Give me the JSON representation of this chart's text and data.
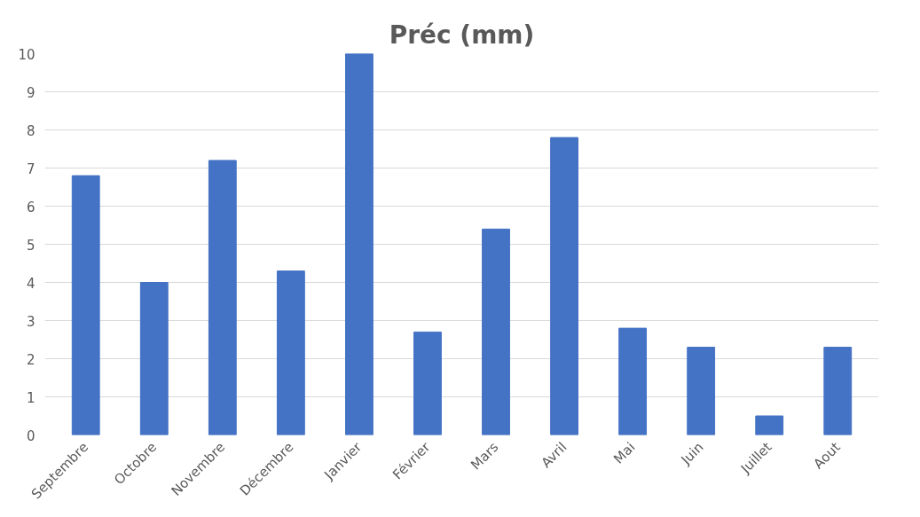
{
  "chart_data": {
    "type": "bar",
    "title": "Préc (mm)",
    "categories": [
      "Septembre",
      "Octobre",
      "Novembre",
      "Décembre",
      "Janvier",
      "Février",
      "Mars",
      "Avril",
      "Mai",
      "Juin",
      "Juillet",
      "Aout"
    ],
    "values": [
      6.8,
      4.0,
      7.2,
      4.3,
      10.0,
      2.7,
      5.4,
      7.8,
      2.8,
      2.3,
      0.5,
      2.3
    ],
    "color": "#4472c4",
    "ylim": [
      0,
      10
    ],
    "yticks": [
      0,
      1,
      2,
      3,
      4,
      5,
      6,
      7,
      8,
      9,
      10
    ],
    "grid": "y"
  }
}
